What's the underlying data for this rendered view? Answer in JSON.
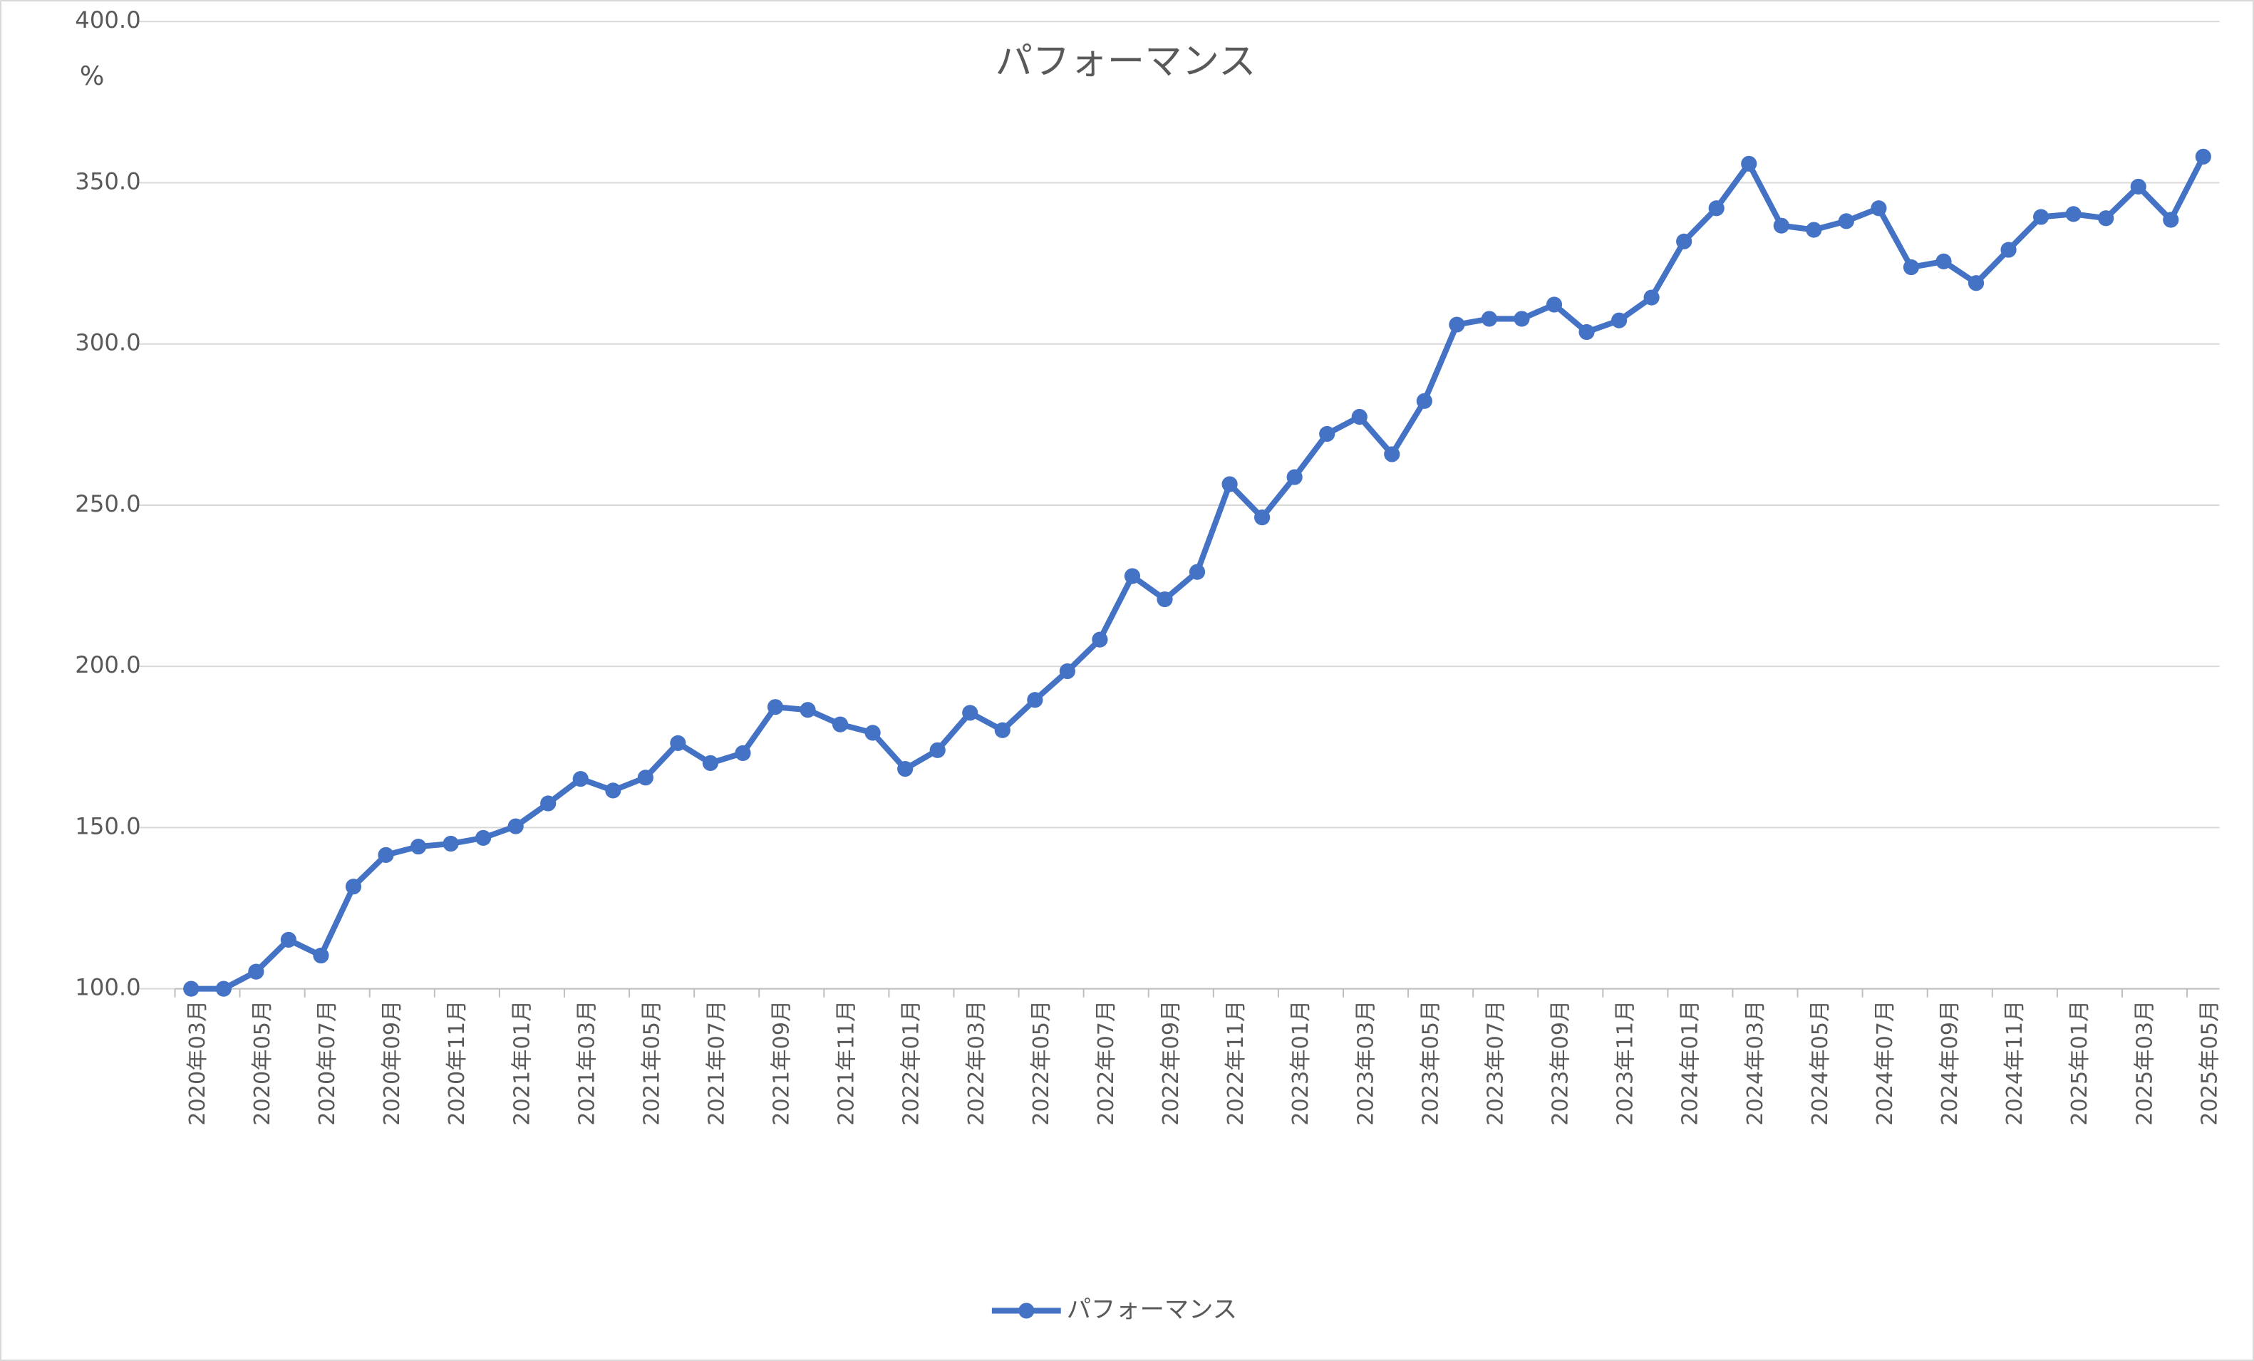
{
  "chart_data": {
    "type": "line",
    "title": "パフォーマンス",
    "y_label": "%",
    "categories": [
      "2020年03月",
      null,
      "2020年05月",
      null,
      "2020年07月",
      null,
      "2020年09月",
      null,
      "2020年11月",
      null,
      "2021年01月",
      null,
      "2021年03月",
      null,
      "2021年05月",
      null,
      "2021年07月",
      null,
      "2021年09月",
      null,
      "2021年11月",
      null,
      "2022年01月",
      null,
      "2022年03月",
      null,
      "2022年05月",
      null,
      "2022年07月",
      null,
      "2022年09月",
      null,
      "2022年11月",
      null,
      "2023年01月",
      null,
      "2023年03月",
      null,
      "2023年05月",
      null,
      "2023年07月",
      null,
      "2023年09月",
      null,
      "2023年11月",
      null,
      "2024年01月",
      null,
      "2024年03月",
      null,
      "2024年05月",
      null,
      "2024年07月",
      null,
      "2024年09月",
      null,
      "2024年11月",
      null,
      "2025年01月",
      null,
      "2025年03月",
      null,
      "2025年05月"
    ],
    "series": [
      {
        "name": "パフォーマンス",
        "color": "#4472c4",
        "values": [
          100,
          100,
          105.3,
          115.2,
          110.3,
          131.7,
          141.5,
          144.1,
          145,
          146.8,
          150.4,
          157.5,
          165.1,
          161.5,
          165.5,
          176.2,
          170,
          173.1,
          187.4,
          186.5,
          182,
          179.4,
          168.2,
          174,
          185.6,
          180.2,
          189.6,
          198.5,
          208.3,
          228,
          220.8,
          229.3,
          256.5,
          246.2,
          258.7,
          272.1,
          277.4,
          265.8,
          282.3,
          306,
          307.8,
          307.8,
          312.2,
          303.7,
          307.3,
          314.4,
          331.8,
          342.1,
          355.9,
          336.7,
          335.4,
          338.1,
          342.1,
          323.8,
          325.6,
          318.9,
          329.2,
          339.4,
          340.3,
          339,
          348.8,
          338.5,
          358.1
        ]
      }
    ],
    "ylim": [
      100,
      400
    ],
    "yticks": [
      {
        "value": 100,
        "label": "100.0"
      },
      {
        "value": 150,
        "label": "150.0"
      },
      {
        "value": 200,
        "label": "200.0"
      },
      {
        "value": 250,
        "label": "250.0"
      },
      {
        "value": 300,
        "label": "300.0"
      },
      {
        "value": 350,
        "label": "350.0"
      },
      {
        "value": 400,
        "label": "400.0"
      }
    ],
    "grid": true,
    "legend": "bottom"
  }
}
